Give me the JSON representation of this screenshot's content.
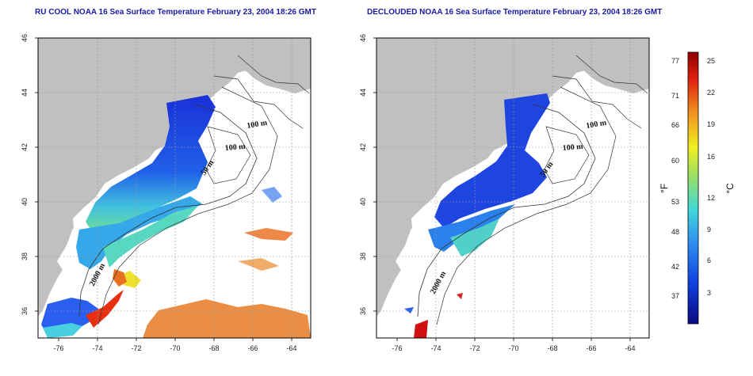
{
  "titles": {
    "left": "RU COOL NOAA 16 Sea Surface Temperature February 23, 2004 18:26 GMT",
    "right": "DECLOUDED NOAA 16 Sea Surface Temperature February 23, 2004 18:26 GMT"
  },
  "axes": {
    "lon_ticks": [
      "-76",
      "-74",
      "-72",
      "-70",
      "-68",
      "-66",
      "-64"
    ],
    "lat_ticks": [
      "46",
      "44",
      "42",
      "40",
      "38",
      "36"
    ]
  },
  "isobath_labels": {
    "m100": "100 m",
    "m50": "50 m",
    "m2000": "2000 m"
  },
  "colorbar": {
    "fahrenheit_ticks": [
      "77",
      "71",
      "66",
      "60",
      "53",
      "48",
      "42",
      "37"
    ],
    "celsius_ticks": [
      "25",
      "22",
      "19",
      "16",
      "12",
      "9",
      "6",
      "3"
    ],
    "f_unit": "°F",
    "c_unit": "°C"
  },
  "colors": {
    "land": "#c0c0c0",
    "grid": "#9a9a9a",
    "title": "#1a1aa6",
    "sst_cold": "#0a12c8",
    "sst_mid": "#2a6cf0",
    "sst_cyan": "#3fd6d0",
    "sst_yellow": "#e8e030",
    "sst_orange": "#e86a1a",
    "sst_warm": "#d01010"
  }
}
